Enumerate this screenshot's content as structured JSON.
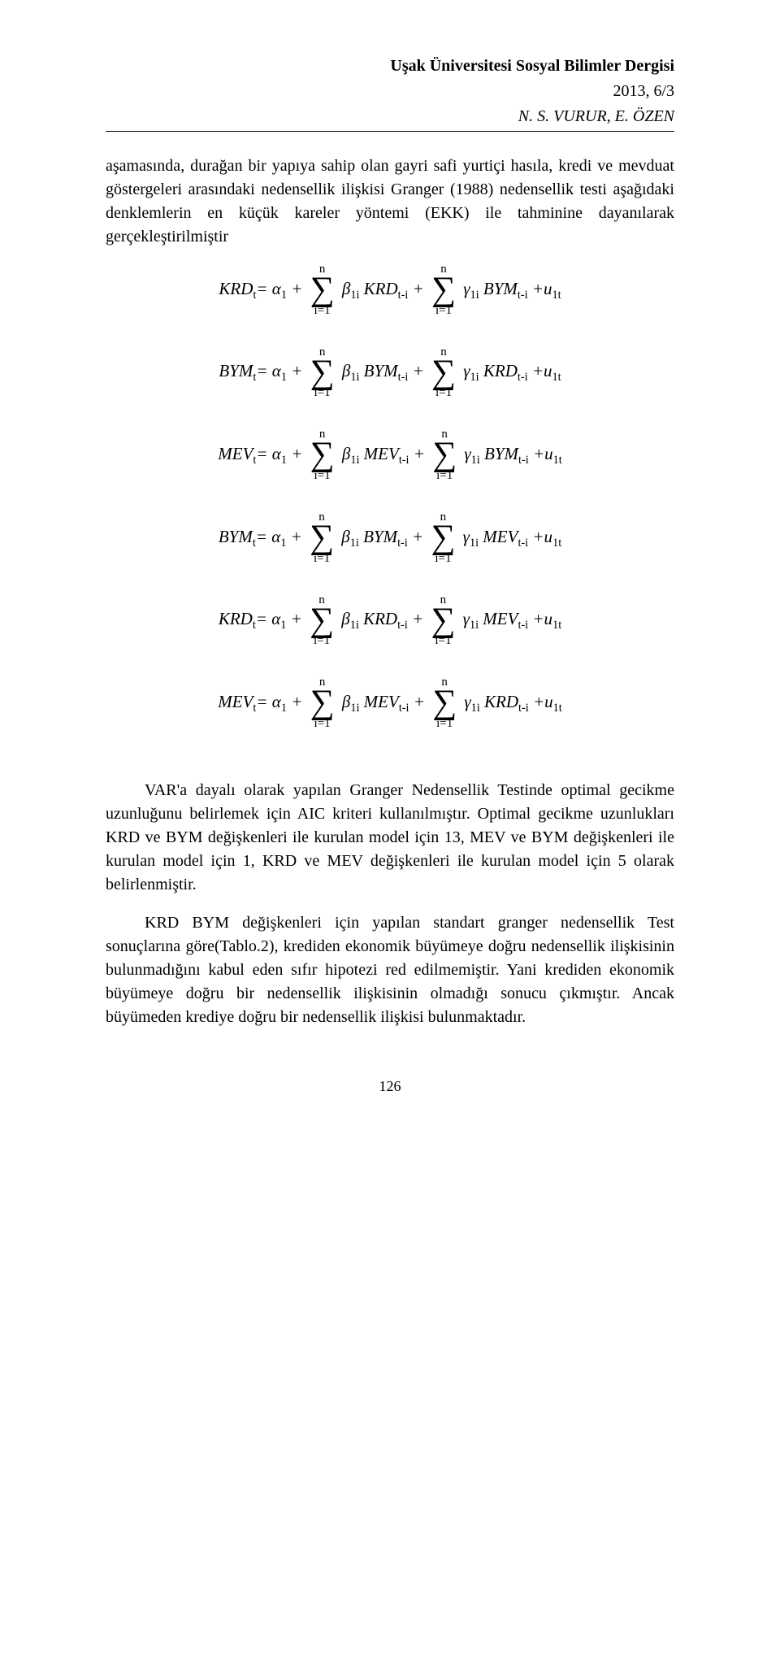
{
  "colors": {
    "background": "#ffffff",
    "text": "#000000",
    "rule": "#000000"
  },
  "typography": {
    "body_font": "Book Antiqua / Palatino",
    "body_size_pt": 11,
    "math_font": "Cambria Math",
    "line_height": 1.45
  },
  "header": {
    "journal": "Uşak Üniversitesi Sosyal Bilimler Dergisi",
    "issue": "2013, 6/3",
    "authors": "N. S. VURUR, E. ÖZEN"
  },
  "paragraphs": {
    "p1": "aşamasında, durağan bir yapıya sahip olan gayri safi yurtiçi hasıla, kredi ve mevduat göstergeleri arasındaki nedensellik ilişkisi Granger (1988) nedensellik testi aşağıdaki denklemlerin en küçük kareler yöntemi (EKK) ile tahminine dayanılarak gerçekleştirilmiştir",
    "p2": "VAR'a dayalı olarak yapılan Granger Nedensellik Testinde optimal gecikme uzunluğunu belirlemek için AIC kriteri kullanılmıştır. Optimal gecikme uzunlukları KRD ve BYM değişkenleri ile kurulan model için 13, MEV ve BYM değişkenleri ile kurulan model için 1, KRD ve MEV değişkenleri ile kurulan model için 5 olarak belirlenmiştir.",
    "p3": "KRD BYM değişkenleri için yapılan standart granger nedensellik Test sonuçlarına göre(Tablo.2), krediden ekonomik büyümeye doğru nedensellik ilişkisinin bulunmadığını kabul eden sıfır hipotezi red edilmemiştir. Yani krediden ekonomik büyümeye doğru bir nedensellik ilişkisinin olmadığı sonucu çıkmıştır. Ancak büyümeden krediye doğru bir nedensellik ilişkisi bulunmaktadır."
  },
  "equations": {
    "spec": {
      "sum_limits": {
        "lower": "i=1",
        "upper": "n"
      },
      "coeff_alpha": "α₁",
      "coeff_beta": "β₁ᵢ",
      "coeff_gamma": "γ₁ᵢ",
      "error": "u₁ₜ",
      "lag_subscript": "t-i",
      "time_subscript": "t",
      "operator": "Σ"
    },
    "list": [
      {
        "lhs": "KRD",
        "term1": "KRD",
        "term2": "BYM"
      },
      {
        "lhs": "BYM",
        "term1": "BYM",
        "term2": "KRD"
      },
      {
        "lhs": "MEV",
        "term1": "MEV",
        "term2": "BYM"
      },
      {
        "lhs": "BYM",
        "term1": "BYM",
        "term2": "MEV"
      },
      {
        "lhs": "KRD",
        "term1": "KRD",
        "term2": "MEV"
      },
      {
        "lhs": "MEV",
        "term1": "MEV",
        "term2": "KRD"
      }
    ]
  },
  "labels": {
    "sum_upper": "n",
    "sum_lower": "i=1",
    "alpha": "α",
    "beta": "β",
    "gamma": "γ",
    "sub1": "1",
    "sub1i": "1i",
    "subt": "t",
    "subti": "t-i",
    "u": "u",
    "sub1t": "1t",
    "eq": "=",
    "plus": "+"
  },
  "page_number": "126"
}
